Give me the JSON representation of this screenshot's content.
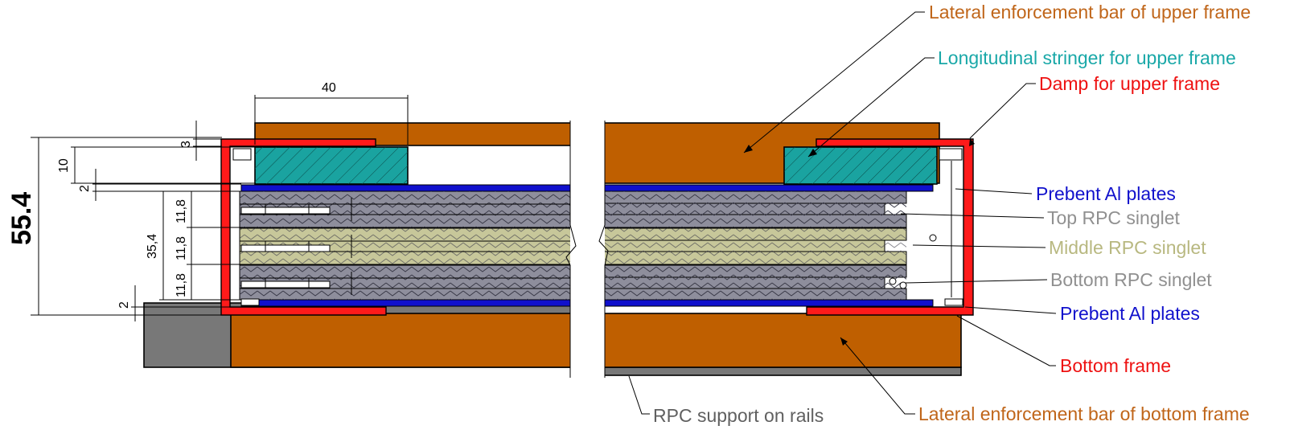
{
  "colors": {
    "brown": "#bf5f00",
    "teal": "#1aa3a0",
    "red": "#ff1a1a",
    "blue": "#1010cc",
    "grey_rpc": "#8e8e9c",
    "khaki_rpc": "#c7c79a",
    "support_grey": "#787878",
    "label_brown": "#c0661a",
    "label_teal": "#1aa8a8",
    "label_red": "#ee1111",
    "label_blue": "#1111cc",
    "label_grey": "#909090",
    "label_khaki": "#b8b880",
    "label_darkgrey": "#606060"
  },
  "labels": {
    "lateral_upper": "Lateral enforcement bar of upper frame",
    "stringer_upper": "Longitudinal stringer for upper frame",
    "damp_upper": "Damp for upper frame",
    "prebent_top": "Prebent Al plates",
    "top_rpc": "Top RPC singlet",
    "middle_rpc": "Middle RPC singlet",
    "bottom_rpc": "Bottom RPC singlet",
    "prebent_bottom": "Prebent Al plates",
    "bottom_frame": "Bottom frame",
    "lateral_bottom": "Lateral enforcement bar of bottom frame",
    "rpc_support": "RPC support on rails"
  },
  "dimensions": {
    "width_40": "40",
    "h3": "3",
    "h10": "10",
    "h2_top": "2",
    "h35_4": "35,4",
    "h11_8_a": "11,8",
    "h11_8_b": "11,8",
    "h11_8_c": "11,8",
    "h2_bottom": "2",
    "total": "55.4"
  }
}
